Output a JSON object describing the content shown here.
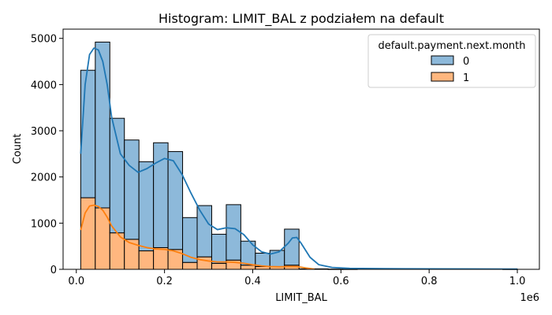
{
  "chart_data": {
    "type": "bar",
    "title": "Histogram: LIMIT_BAL z podziałem na default",
    "xlabel": "LIMIT_BAL",
    "ylabel": "Count",
    "x_offset_label": "1e6",
    "xlim": [
      -30000,
      1050000
    ],
    "ylim": [
      0,
      5200
    ],
    "xticks": [
      0,
      0.2,
      0.4,
      0.6,
      0.8,
      1.0
    ],
    "xtick_labels": [
      "0.0",
      "0.2",
      "0.4",
      "0.6",
      "0.8",
      "1.0"
    ],
    "yticks": [
      0,
      1000,
      2000,
      3000,
      4000,
      5000
    ],
    "ytick_labels": [
      "0",
      "1000",
      "2000",
      "3000",
      "4000",
      "5000"
    ],
    "grid": false,
    "stacked": true,
    "legend": {
      "title": "default.payment.next.month",
      "position": "top-right",
      "entries": [
        "0",
        "1"
      ]
    },
    "bin_start": 10000,
    "bin_width": 33000,
    "series": [
      {
        "name": "1",
        "color": "#ffb77f",
        "line_color": "#ff7f0e",
        "values": [
          1550,
          1330,
          790,
          650,
          400,
          470,
          430,
          150,
          270,
          130,
          200,
          90,
          60,
          60,
          90,
          0,
          0,
          0,
          0,
          0,
          0,
          0,
          0,
          0,
          0,
          0,
          0,
          0,
          0,
          0
        ]
      },
      {
        "name": "0",
        "color": "#8db9da",
        "line_color": "#1f77b4",
        "values": [
          2760,
          3590,
          2480,
          2150,
          1930,
          2270,
          2120,
          970,
          1110,
          630,
          1200,
          520,
          290,
          350,
          780,
          10,
          10,
          5,
          5,
          0,
          0,
          0,
          0,
          0,
          0,
          0,
          0,
          0,
          0,
          5
        ]
      }
    ],
    "kde": [
      {
        "series": "0",
        "x": [
          10000,
          20000,
          30000,
          40000,
          50000,
          60000,
          70000,
          80000,
          100000,
          120000,
          140000,
          160000,
          180000,
          200000,
          220000,
          240000,
          260000,
          280000,
          300000,
          320000,
          340000,
          360000,
          380000,
          400000,
          420000,
          440000,
          460000,
          480000,
          490000,
          500000,
          510000,
          530000,
          550000,
          580000,
          620000,
          700000,
          800000,
          900000,
          1000000
        ],
        "y": [
          2500,
          4000,
          4650,
          4790,
          4750,
          4500,
          4000,
          3300,
          2500,
          2250,
          2100,
          2180,
          2300,
          2400,
          2350,
          2050,
          1650,
          1280,
          980,
          860,
          900,
          880,
          750,
          530,
          380,
          330,
          380,
          560,
          680,
          690,
          560,
          260,
          100,
          40,
          20,
          15,
          10,
          8,
          5
        ]
      },
      {
        "series": "1",
        "x": [
          10000,
          20000,
          30000,
          40000,
          50000,
          60000,
          70000,
          80000,
          100000,
          120000,
          140000,
          160000,
          180000,
          200000,
          220000,
          240000,
          260000,
          280000,
          300000,
          320000,
          340000,
          360000,
          380000,
          400000,
          420000,
          440000,
          460000,
          480000,
          500000,
          520000,
          540000
        ],
        "y": [
          850,
          1220,
          1370,
          1390,
          1360,
          1280,
          1130,
          940,
          700,
          580,
          520,
          470,
          440,
          430,
          400,
          340,
          260,
          210,
          180,
          160,
          160,
          150,
          130,
          100,
          75,
          60,
          55,
          60,
          60,
          30,
          5
        ]
      }
    ]
  }
}
